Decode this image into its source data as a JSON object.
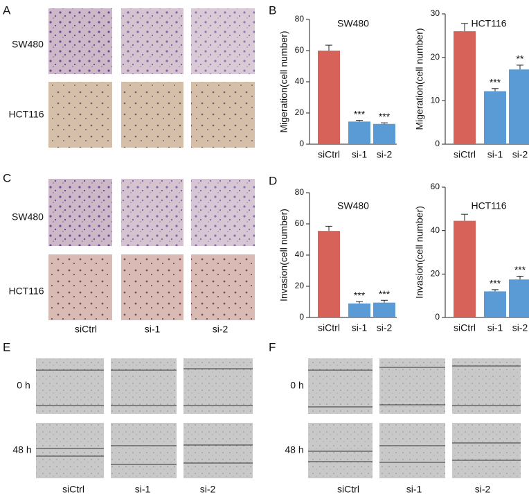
{
  "panels": {
    "labels": [
      "A",
      "B",
      "C",
      "D",
      "E",
      "F"
    ]
  },
  "panel_a": {
    "rows": [
      "SW480",
      "HCT116"
    ]
  },
  "panel_c": {
    "rows": [
      "SW480",
      "HCT116"
    ],
    "columns": [
      "siCtrl",
      "si-1",
      "si-2"
    ]
  },
  "panel_e": {
    "rows": [
      "0 h",
      "48 h"
    ],
    "columns": [
      "siCtrl",
      "si-1",
      "si-2"
    ]
  },
  "panel_f": {
    "rows": [
      "0 h",
      "48 h"
    ],
    "columns": [
      "siCtrl",
      "si-1",
      "si-2"
    ]
  },
  "chart_data": [
    {
      "type": "bar",
      "title": "SW480",
      "y_label": "Migeration(cell number)",
      "categories": [
        "siCtrl",
        "si-1",
        "si-2"
      ],
      "values": [
        60,
        14.5,
        13
      ],
      "errors": [
        3.5,
        0.8,
        0.7
      ],
      "significance": [
        null,
        "***",
        "***"
      ],
      "colors": [
        "#d6625a",
        "#5b9bd5",
        "#5b9bd5"
      ],
      "ylim": [
        0,
        80
      ],
      "yticks": [
        0,
        20,
        40,
        60,
        80
      ]
    },
    {
      "type": "bar",
      "title": "HCT116",
      "y_label": "Migeration(cell number)",
      "categories": [
        "siCtrl",
        "si-1",
        "si-2"
      ],
      "values": [
        26,
        12.2,
        17.2
      ],
      "errors": [
        1.8,
        0.6,
        1.0
      ],
      "significance": [
        null,
        "***",
        "**"
      ],
      "colors": [
        "#d6625a",
        "#5b9bd5",
        "#5b9bd5"
      ],
      "ylim": [
        0,
        30
      ],
      "yticks": [
        0,
        10,
        20,
        30
      ]
    },
    {
      "type": "bar",
      "title": "SW480",
      "y_label": "Invasion(cell number)",
      "categories": [
        "siCtrl",
        "si-1",
        "si-2"
      ],
      "values": [
        55.5,
        9,
        9.5
      ],
      "errors": [
        3,
        1.2,
        1.5
      ],
      "significance": [
        null,
        "***",
        "***"
      ],
      "colors": [
        "#d6625a",
        "#5b9bd5",
        "#5b9bd5"
      ],
      "ylim": [
        0,
        80
      ],
      "yticks": [
        0,
        20,
        40,
        60,
        80
      ]
    },
    {
      "type": "bar",
      "title": "HCT116",
      "y_label": "Invasion(cell number)",
      "categories": [
        "siCtrl",
        "si-1",
        "si-2"
      ],
      "values": [
        44.5,
        12,
        17.5
      ],
      "errors": [
        3,
        0.8,
        1.5
      ],
      "significance": [
        null,
        "***",
        "***"
      ],
      "colors": [
        "#d6625a",
        "#5b9bd5",
        "#5b9bd5"
      ],
      "ylim": [
        0,
        60
      ],
      "yticks": [
        0,
        20,
        40,
        60
      ]
    }
  ]
}
